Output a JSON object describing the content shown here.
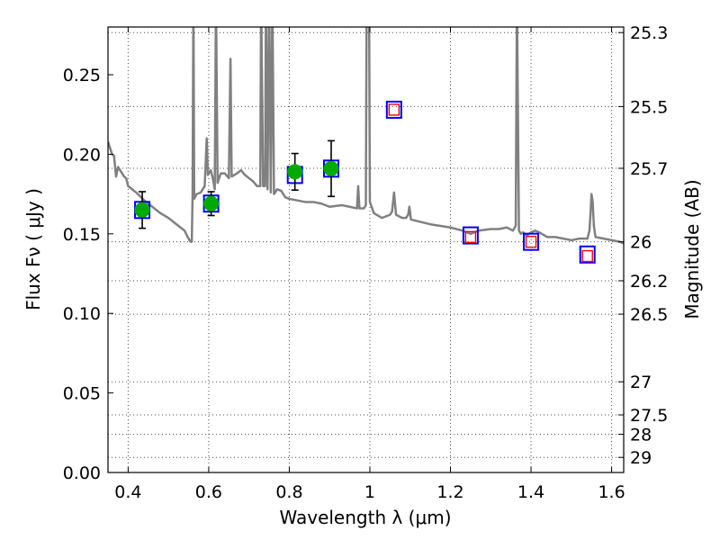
{
  "chart_data": {
    "type": "scatter",
    "xlabel": "Wavelength  λ (μm)",
    "ylabel": "Flux  Fν  ( μJy )",
    "y2label": "Magnitude (AB)",
    "xlim": [
      0.35,
      1.63
    ],
    "ylim": [
      0.0,
      0.28
    ],
    "x_ticks": [
      0.4,
      0.6,
      0.8,
      1.0,
      1.2,
      1.4,
      1.6
    ],
    "x_tick_labels": [
      "0.4",
      "0.6",
      "0.8",
      "1",
      "1.2",
      "1.4",
      "1.6"
    ],
    "y_ticks": [
      0.0,
      0.05,
      0.1,
      0.15,
      0.2,
      0.25
    ],
    "y_tick_labels": [
      "0.00",
      "0.05",
      "0.10",
      "0.15",
      "0.20",
      "0.25"
    ],
    "y2_ticks": [
      {
        "label": "25.3",
        "flux": 0.2765
      },
      {
        "label": "25.5",
        "flux": 0.23
      },
      {
        "label": "25.7",
        "flux": 0.1912
      },
      {
        "label": "26",
        "flux": 0.145
      },
      {
        "label": "26.2",
        "flux": 0.1205
      },
      {
        "label": "26.5",
        "flux": 0.0995
      },
      {
        "label": "27",
        "flux": 0.057
      },
      {
        "label": "27.5",
        "flux": 0.0362
      },
      {
        "label": "28",
        "flux": 0.024
      },
      {
        "label": "29",
        "flux": 0.0095
      }
    ],
    "grid": true,
    "colors": {
      "model": "#808080",
      "observed": "#00aa00",
      "model_box": "#0000ff",
      "prediction_box": "#ff0000",
      "errorbar": "#000000"
    },
    "model_sed": [
      [
        0.35,
        0.208
      ],
      [
        0.36,
        0.2
      ],
      [
        0.365,
        0.199
      ],
      [
        0.37,
        0.186
      ],
      [
        0.375,
        0.192
      ],
      [
        0.38,
        0.19
      ],
      [
        0.385,
        0.188
      ],
      [
        0.39,
        0.186
      ],
      [
        0.395,
        0.185
      ],
      [
        0.4,
        0.18
      ],
      [
        0.42,
        0.176
      ],
      [
        0.44,
        0.171
      ],
      [
        0.46,
        0.167
      ],
      [
        0.48,
        0.163
      ],
      [
        0.5,
        0.16
      ],
      [
        0.52,
        0.156
      ],
      [
        0.54,
        0.152
      ],
      [
        0.55,
        0.147
      ],
      [
        0.555,
        0.145
      ],
      [
        0.558,
        0.145
      ],
      [
        0.56,
        0.175
      ],
      [
        0.562,
        0.3
      ],
      [
        0.564,
        0.172
      ],
      [
        0.57,
        0.175
      ],
      [
        0.58,
        0.176
      ],
      [
        0.59,
        0.18
      ],
      [
        0.595,
        0.21
      ],
      [
        0.598,
        0.187
      ],
      [
        0.605,
        0.19
      ],
      [
        0.61,
        0.185
      ],
      [
        0.615,
        0.178
      ],
      [
        0.618,
        0.3
      ],
      [
        0.622,
        0.182
      ],
      [
        0.63,
        0.188
      ],
      [
        0.64,
        0.188
      ],
      [
        0.65,
        0.185
      ],
      [
        0.654,
        0.26
      ],
      [
        0.657,
        0.186
      ],
      [
        0.67,
        0.188
      ],
      [
        0.68,
        0.19
      ],
      [
        0.69,
        0.187
      ],
      [
        0.7,
        0.185
      ],
      [
        0.71,
        0.183
      ],
      [
        0.72,
        0.18
      ],
      [
        0.728,
        0.18
      ],
      [
        0.73,
        0.3
      ],
      [
        0.735,
        0.18
      ],
      [
        0.74,
        0.18
      ],
      [
        0.742,
        0.3
      ],
      [
        0.746,
        0.178
      ],
      [
        0.75,
        0.3
      ],
      [
        0.754,
        0.176
      ],
      [
        0.758,
        0.3
      ],
      [
        0.762,
        0.175
      ],
      [
        0.77,
        0.178
      ],
      [
        0.78,
        0.177
      ],
      [
        0.79,
        0.173
      ],
      [
        0.8,
        0.172
      ],
      [
        0.82,
        0.171
      ],
      [
        0.84,
        0.17
      ],
      [
        0.86,
        0.17
      ],
      [
        0.88,
        0.169
      ],
      [
        0.9,
        0.167
      ],
      [
        0.93,
        0.168
      ],
      [
        0.95,
        0.167
      ],
      [
        0.968,
        0.166
      ],
      [
        0.971,
        0.18
      ],
      [
        0.974,
        0.166
      ],
      [
        0.985,
        0.166
      ],
      [
        0.99,
        0.168
      ],
      [
        0.992,
        0.3
      ],
      [
        0.998,
        0.3
      ],
      [
        1.0,
        0.17
      ],
      [
        1.01,
        0.163
      ],
      [
        1.03,
        0.16
      ],
      [
        1.05,
        0.162
      ],
      [
        1.055,
        0.164
      ],
      [
        1.06,
        0.176
      ],
      [
        1.065,
        0.162
      ],
      [
        1.08,
        0.16
      ],
      [
        1.09,
        0.16
      ],
      [
        1.095,
        0.162
      ],
      [
        1.098,
        0.167
      ],
      [
        1.102,
        0.159
      ],
      [
        1.15,
        0.156
      ],
      [
        1.2,
        0.154
      ],
      [
        1.23,
        0.152
      ],
      [
        1.25,
        0.15
      ],
      [
        1.27,
        0.152
      ],
      [
        1.3,
        0.153
      ],
      [
        1.32,
        0.153
      ],
      [
        1.34,
        0.154
      ],
      [
        1.355,
        0.152
      ],
      [
        1.362,
        0.155
      ],
      [
        1.365,
        0.3
      ],
      [
        1.37,
        0.152
      ],
      [
        1.375,
        0.15
      ],
      [
        1.38,
        0.151
      ],
      [
        1.39,
        0.149
      ],
      [
        1.4,
        0.151
      ],
      [
        1.41,
        0.152
      ],
      [
        1.42,
        0.151
      ],
      [
        1.44,
        0.148
      ],
      [
        1.46,
        0.148
      ],
      [
        1.48,
        0.147
      ],
      [
        1.5,
        0.146
      ],
      [
        1.52,
        0.147
      ],
      [
        1.54,
        0.147
      ],
      [
        1.545,
        0.152
      ],
      [
        1.548,
        0.164
      ],
      [
        1.55,
        0.175
      ],
      [
        1.553,
        0.17
      ],
      [
        1.556,
        0.155
      ],
      [
        1.56,
        0.148
      ],
      [
        1.58,
        0.147
      ],
      [
        1.6,
        0.146
      ],
      [
        1.62,
        0.145
      ],
      [
        1.63,
        0.144
      ]
    ],
    "observed_points": [
      {
        "x": 0.435,
        "y": 0.165,
        "err": 0.0115
      },
      {
        "x": 0.606,
        "y": 0.169,
        "err": 0.0075
      },
      {
        "x": 0.814,
        "y": 0.189,
        "err": 0.0115
      },
      {
        "x": 0.904,
        "y": 0.191,
        "err": 0.0175
      }
    ],
    "model_boxes": [
      0.435,
      0.606,
      0.814,
      0.904,
      1.06,
      1.25,
      1.4,
      1.54
    ],
    "model_box_values": [
      0.165,
      0.169,
      0.187,
      0.191,
      0.228,
      0.149,
      0.145,
      0.137
    ],
    "prediction_boxes": [
      {
        "x": 1.06,
        "y": 0.228
      },
      {
        "x": 1.25,
        "y": 0.148
      },
      {
        "x": 1.4,
        "y": 0.145
      },
      {
        "x": 1.54,
        "y": 0.136
      }
    ]
  }
}
